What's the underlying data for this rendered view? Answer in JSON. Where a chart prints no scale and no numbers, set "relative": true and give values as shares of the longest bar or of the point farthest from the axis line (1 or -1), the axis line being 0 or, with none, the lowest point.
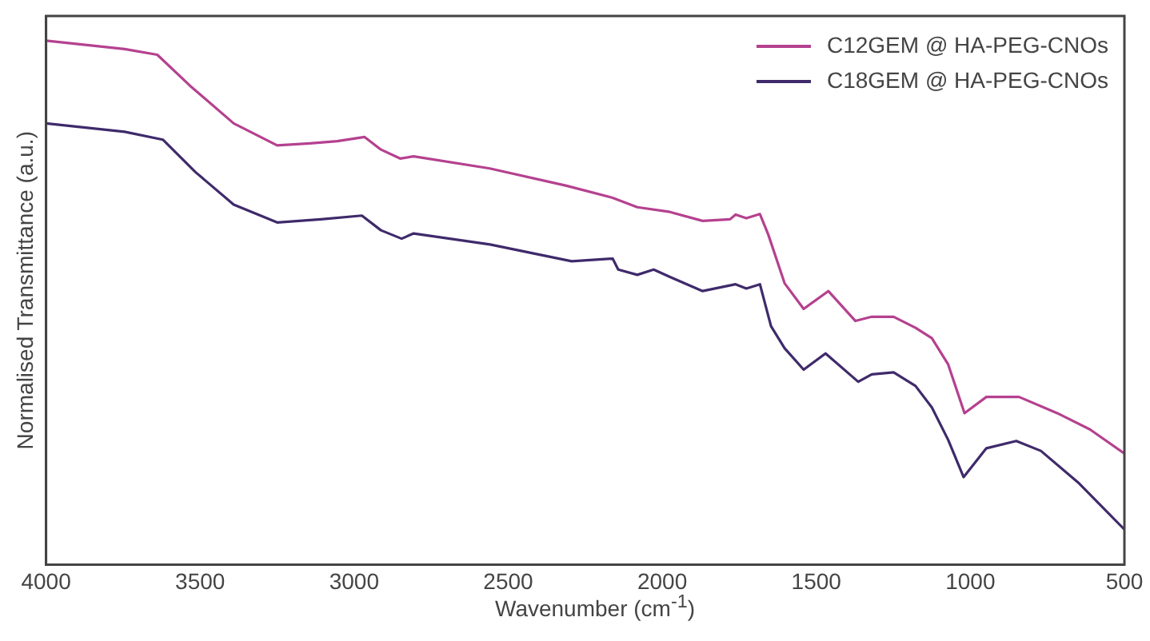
{
  "chart_data": {
    "type": "line",
    "xlabel": "Wavenumber (cm$^{-1}$)",
    "ylabel": "Normalised Transmittance (a.u.)",
    "relative": true,
    "xlim": [
      4000,
      500
    ],
    "xticks": [
      4000,
      3500,
      3000,
      2500,
      2000,
      1500,
      1000,
      500
    ],
    "grid": false,
    "legend": "top right",
    "marker": "none",
    "line_style": "solid",
    "series": [
      {
        "name": "C12GEM @ HA-PEG-CNOs",
        "color": "#b5418f",
        "x": [
          4000,
          3745,
          3639,
          3533,
          3391,
          3250,
          3143,
          3055,
          2966,
          2913,
          2851,
          2807,
          2560,
          2311,
          2161,
          2081,
          1975,
          1869,
          1780,
          1762,
          1727,
          1683,
          1656,
          1603,
          1541,
          1461,
          1373,
          1320,
          1249,
          1178,
          1125,
          1072,
          1019,
          948,
          842,
          718,
          612,
          500
        ],
        "values": [
          1.0,
          0.984,
          0.973,
          0.914,
          0.842,
          0.8,
          0.804,
          0.808,
          0.816,
          0.792,
          0.775,
          0.779,
          0.756,
          0.723,
          0.7,
          0.682,
          0.673,
          0.656,
          0.659,
          0.668,
          0.661,
          0.669,
          0.63,
          0.537,
          0.488,
          0.522,
          0.465,
          0.473,
          0.473,
          0.452,
          0.432,
          0.382,
          0.289,
          0.32,
          0.32,
          0.289,
          0.258,
          0.212
        ]
      },
      {
        "name": "C18GEM @ HA-PEG-CNOs",
        "color": "#3f2a6b",
        "x": [
          4000,
          3745,
          3621,
          3515,
          3391,
          3250,
          3108,
          2975,
          2913,
          2846,
          2807,
          2559,
          2294,
          2161,
          2143,
          2081,
          2028,
          1975,
          1869,
          1762,
          1727,
          1683,
          1647,
          1603,
          1541,
          1470,
          1364,
          1320,
          1249,
          1178,
          1125,
          1072,
          1022,
          948,
          851,
          771,
          647,
          500
        ],
        "values": [
          0.842,
          0.826,
          0.811,
          0.749,
          0.687,
          0.653,
          0.659,
          0.666,
          0.638,
          0.622,
          0.632,
          0.611,
          0.579,
          0.584,
          0.563,
          0.553,
          0.563,
          0.549,
          0.522,
          0.535,
          0.527,
          0.535,
          0.455,
          0.413,
          0.372,
          0.403,
          0.349,
          0.363,
          0.367,
          0.341,
          0.3,
          0.238,
          0.167,
          0.222,
          0.236,
          0.217,
          0.155,
          0.067
        ]
      }
    ]
  }
}
